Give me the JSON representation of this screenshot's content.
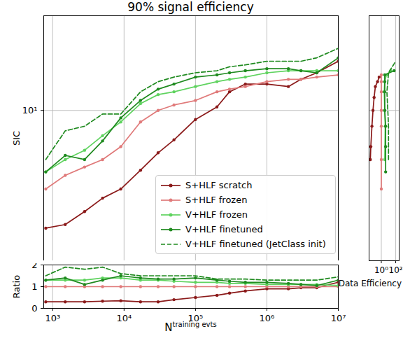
{
  "chart_data": [
    {
      "type": "line",
      "title": "90% signal efficiency",
      "ylabel": "SIC",
      "x": [
        800,
        1500,
        2800,
        5000,
        9000,
        17000,
        30000,
        50000,
        100000,
        200000,
        300000,
        500000,
        1000000,
        2000000,
        3000000,
        5000000,
        10000000
      ],
      "series": [
        {
          "name": "S+HLF scratch",
          "color": "#8b1a1a",
          "line_style": "solid",
          "marker": "circle",
          "values": [
            1.9,
            2.0,
            2.4,
            2.9,
            3.3,
            4.3,
            5.5,
            6.6,
            8.8,
            10.5,
            13,
            14.5,
            14.5,
            14,
            15.5,
            17,
            20
          ]
        },
        {
          "name": "S+HLF frozen",
          "color": "#e07a7a",
          "line_style": "solid",
          "marker": "circle",
          "values": [
            3.3,
            4.0,
            4.5,
            5.0,
            6.0,
            8.5,
            10.0,
            10.8,
            11.5,
            13,
            13.5,
            14,
            15,
            15.5,
            15.5,
            16,
            16.5
          ]
        },
        {
          "name": "V+HLF frozen",
          "color": "#5fd35f",
          "line_style": "solid",
          "marker": "circle",
          "values": [
            4.2,
            5.0,
            5.7,
            7.0,
            8.5,
            11.0,
            12.5,
            13,
            14,
            15,
            15.5,
            16,
            17,
            17.5,
            17.5,
            17.5,
            17.5
          ]
        },
        {
          "name": "V+HLF finetuned",
          "color": "#1f8a1f",
          "line_style": "solid",
          "marker": "circle",
          "values": [
            4.2,
            5.3,
            5.0,
            6.5,
            9.0,
            11.5,
            13.5,
            14.5,
            16,
            16.5,
            17,
            17.5,
            18,
            18,
            17.5,
            17,
            21
          ]
        },
        {
          "name": "V+HLF finetuned (JetClass init)",
          "color": "#1f8a1f",
          "line_style": "dashed",
          "marker": "none",
          "values": [
            5.0,
            7.5,
            8.0,
            9.5,
            9.5,
            13,
            15,
            16,
            17,
            17.5,
            18.5,
            19,
            20,
            20,
            20,
            21,
            24
          ]
        }
      ],
      "xlim": [
        750,
        10000000
      ],
      "ylim": [
        1.2,
        38
      ],
      "xticks": [
        1000,
        10000,
        100000,
        1000000,
        10000000
      ],
      "yticks": [
        {
          "value": 10,
          "label": "10¹"
        }
      ],
      "log": true,
      "grid": true,
      "legend": "lower center",
      "tick_labels": "y"
    },
    {
      "type": "line",
      "xlabel": "Data Efficiency",
      "series": [
        {
          "name": "S+HLF scratch",
          "color": "#8b1a1a",
          "line_style": "solid",
          "marker": "circle",
          "x": [
            0.03,
            0.035,
            0.05,
            0.07,
            0.1,
            0.15,
            0.3,
            0.5
          ],
          "values": [
            5,
            6,
            8,
            10,
            12,
            14,
            15,
            16
          ]
        },
        {
          "name": "S+HLF frozen",
          "color": "#e07a7a",
          "line_style": "solid",
          "marker": "circle",
          "x": [
            1,
            1,
            1,
            1,
            1,
            1,
            1
          ],
          "values": [
            3.3,
            5,
            8,
            10,
            13,
            15,
            16.5
          ]
        },
        {
          "name": "V+HLF frozen",
          "color": "#5fd35f",
          "line_style": "solid",
          "marker": "circle",
          "x": [
            3,
            3.5,
            3,
            2.5,
            3,
            5,
            20
          ],
          "values": [
            5,
            8,
            10,
            13,
            15,
            16.5,
            17.5
          ]
        },
        {
          "name": "V+HLF finetuned",
          "color": "#1f8a1f",
          "line_style": "solid",
          "marker": "circle",
          "x": [
            4,
            4,
            4,
            3,
            3,
            3,
            3,
            60
          ],
          "values": [
            4.2,
            6,
            8,
            10,
            13,
            15,
            16.5,
            17.5
          ]
        },
        {
          "name": "V+HLF finetuned (JetClass init)",
          "color": "#1f8a1f",
          "line_style": "dashed",
          "marker": "none",
          "x": [
            10,
            10,
            8,
            6,
            8,
            10,
            100
          ],
          "values": [
            5,
            8,
            10,
            13,
            15,
            17,
            20
          ]
        }
      ],
      "xlim": [
        0.02,
        300
      ],
      "ylim": [
        1.2,
        38
      ],
      "xticks": [
        {
          "value": 1,
          "label": "10⁰"
        },
        {
          "value": 100,
          "label": "10²"
        }
      ],
      "yticks": [
        10
      ],
      "log": true,
      "grid": true,
      "tick_labels": "x"
    },
    {
      "type": "line",
      "ylabel": "Ratio",
      "xlabel": {
        "text": "N",
        "superscript": "training evts"
      },
      "x": [
        800,
        1500,
        2800,
        5000,
        9000,
        17000,
        30000,
        50000,
        100000,
        200000,
        300000,
        500000,
        1000000,
        2000000,
        3000000,
        5000000,
        10000000
      ],
      "series": [
        {
          "name": "S+HLF scratch",
          "color": "#8b1a1a",
          "line_style": "solid",
          "marker": "circle",
          "values": [
            0.3,
            0.3,
            0.3,
            0.33,
            0.35,
            0.3,
            0.3,
            0.4,
            0.5,
            0.6,
            0.7,
            0.8,
            0.9,
            0.9,
            0.95,
            0.95,
            1.2
          ]
        },
        {
          "name": "S+HLF frozen",
          "color": "#e07a7a",
          "line_style": "solid",
          "marker": "circle",
          "values": [
            1,
            1,
            1,
            1,
            1,
            1,
            1,
            1,
            1,
            1,
            1,
            1,
            1,
            1,
            1,
            1,
            1
          ]
        },
        {
          "name": "V+HLF frozen",
          "color": "#5fd35f",
          "line_style": "solid",
          "marker": "circle",
          "values": [
            1.3,
            1.3,
            1.3,
            1.4,
            1.4,
            1.3,
            1.3,
            1.25,
            1.2,
            1.2,
            1.15,
            1.15,
            1.1,
            1.1,
            1.1,
            1.1,
            1.05
          ]
        },
        {
          "name": "V+HLF finetuned",
          "color": "#1f8a1f",
          "line_style": "solid",
          "marker": "circle",
          "values": [
            1.3,
            1.4,
            1.1,
            1.3,
            1.5,
            1.4,
            1.35,
            1.35,
            1.4,
            1.3,
            1.25,
            1.2,
            1.2,
            1.15,
            1.1,
            1.05,
            1.3
          ]
        },
        {
          "name": "V+HLF finetuned (JetClass init)",
          "color": "#1f8a1f",
          "line_style": "dashed",
          "marker": "none",
          "values": [
            1.5,
            1.9,
            1.8,
            1.9,
            1.6,
            1.5,
            1.5,
            1.5,
            1.5,
            1.35,
            1.35,
            1.35,
            1.3,
            1.3,
            1.3,
            1.3,
            1.45
          ]
        }
      ],
      "xlim": [
        750,
        10000000
      ],
      "ylim": [
        0,
        2
      ],
      "xticks": [
        {
          "value": 1000,
          "label": "10³"
        },
        {
          "value": 10000,
          "label": "10⁴"
        },
        {
          "value": 100000,
          "label": "10⁵"
        },
        {
          "value": 1000000,
          "label": "10⁶"
        },
        {
          "value": 10000000,
          "label": "10⁷"
        }
      ],
      "yticks": [
        0,
        1,
        2
      ],
      "log": "x",
      "grid": true
    }
  ]
}
